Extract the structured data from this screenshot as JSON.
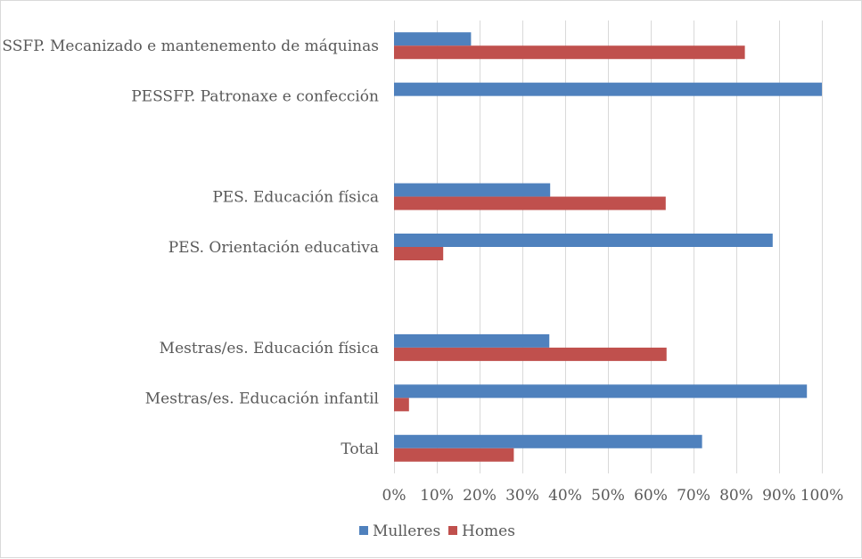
{
  "chart_data": {
    "type": "bar",
    "orientation": "horizontal",
    "title": "",
    "xlabel": "",
    "ylabel": "",
    "xlim": [
      0,
      100
    ],
    "x_unit": "%",
    "ticks": [
      "0%",
      "10%",
      "20%",
      "30%",
      "40%",
      "50%",
      "60%",
      "70%",
      "80%",
      "90%",
      "100%"
    ],
    "tick_values": [
      0,
      10,
      20,
      30,
      40,
      50,
      60,
      70,
      80,
      90,
      100
    ],
    "grid": true,
    "legend_position": "bottom",
    "categories": [
      "PESSFP. Mecanizado e mantenemento de máquinas",
      "PESSFP. Patronaxe e confección",
      "",
      "PES. Educación física",
      "PES. Orientación educativa",
      "",
      "Mestras/es. Educación física",
      "Mestras/es. Educación infantil",
      "Total"
    ],
    "series": [
      {
        "name": "Mulleres",
        "color": "#4f81bd",
        "values": [
          18,
          100,
          null,
          36.5,
          88.5,
          null,
          36.3,
          96.5,
          72
        ]
      },
      {
        "name": "Homes",
        "color": "#c0504d",
        "values": [
          82,
          0,
          null,
          63.5,
          11.5,
          null,
          63.7,
          3.5,
          28
        ]
      }
    ]
  }
}
